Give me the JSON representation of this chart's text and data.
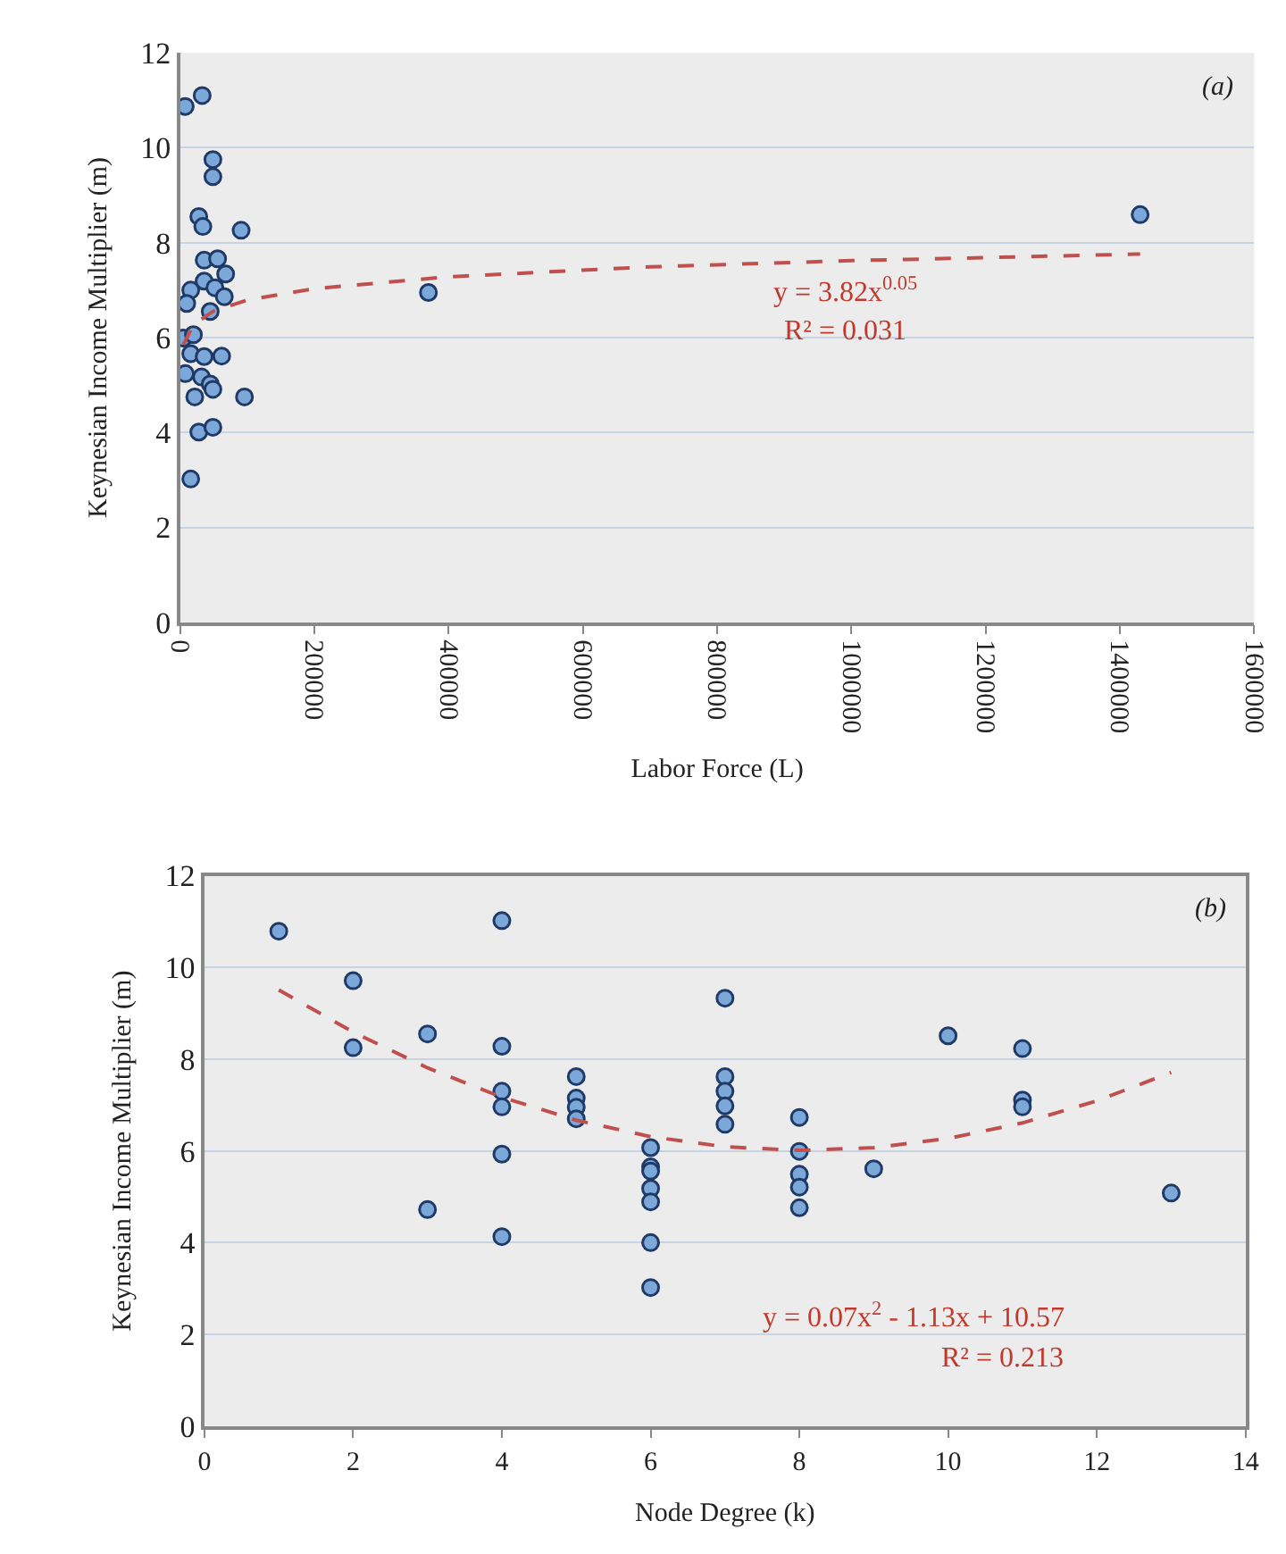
{
  "chart_data": [
    {
      "type": "scatter",
      "xlabel": "Labor Force (L)",
      "ylabel": "Keynesian Income Multiplier (m)",
      "xlim": [
        0,
        1600000
      ],
      "xticks": [
        0,
        200000,
        400000,
        600000,
        800000,
        1000000,
        1200000,
        1400000,
        1600000
      ],
      "ylim": [
        0,
        12
      ],
      "yticks": [
        0,
        2,
        4,
        6,
        8,
        10,
        12
      ],
      "grid": "y",
      "marker": "circle",
      "annotations": [
        "(a)",
        "y = 3.82x$^{0.05}$",
        "R² = 0.031"
      ],
      "series": [
        {
          "color": "#7ba7d9",
          "x": [
            7800,
            33000,
            49000,
            49000,
            28000,
            34000,
            91000,
            36000,
            56000,
            68000,
            36000,
            16000,
            52000,
            66000,
            10000,
            45000,
            5000,
            20000,
            16000,
            36000,
            62000,
            8000,
            32000,
            45000,
            49000,
            22000,
            96000,
            28000,
            49000,
            16000,
            370000,
            1430000
          ],
          "values": [
            10.87,
            11.1,
            9.75,
            9.39,
            8.55,
            8.34,
            8.26,
            7.63,
            7.66,
            7.34,
            7.19,
            7.0,
            7.05,
            6.86,
            6.72,
            6.55,
            5.99,
            6.06,
            5.66,
            5.6,
            5.61,
            5.24,
            5.17,
            5.02,
            4.91,
            4.75,
            4.75,
            4.01,
            4.11,
            3.02,
            6.95,
            8.59
          ]
        },
        {
          "type": "line",
          "color": "#c0504d",
          "line_style": "dashed",
          "marker": "none",
          "x": [
            5000,
            20000,
            50000,
            100000,
            200000,
            400000,
            700000,
            1000000,
            1430000
          ],
          "values": [
            5.85,
            6.27,
            6.56,
            6.79,
            7.03,
            7.28,
            7.49,
            7.62,
            7.76
          ]
        }
      ]
    },
    {
      "type": "scatter",
      "xlabel": "Node Degree (k)",
      "ylabel": "Keynesian Income Multiplier (m)",
      "xlim": [
        0,
        14
      ],
      "xticks": [
        0,
        2,
        4,
        6,
        8,
        10,
        12,
        14
      ],
      "ylim": [
        0,
        12
      ],
      "yticks": [
        0,
        2,
        4,
        6,
        8,
        10,
        12
      ],
      "grid": "y",
      "marker": "circle",
      "annotations": [
        "(b)",
        "y = 0.07x$^{2}$ - 1.13x + 10.57",
        "R² = 0.213"
      ],
      "series": [
        {
          "color": "#7ba7d9",
          "x": [
            1,
            2,
            2,
            3,
            3,
            4,
            4,
            4,
            4,
            4,
            4,
            5,
            5,
            5,
            5,
            6,
            6,
            6,
            6,
            6,
            6,
            6,
            7,
            7,
            7,
            7,
            7,
            8,
            8,
            8,
            8,
            8,
            9,
            10,
            11,
            11,
            11,
            13
          ],
          "values": [
            10.79,
            9.71,
            8.25,
            8.55,
            4.72,
            11.02,
            8.28,
            7.3,
            6.96,
            5.93,
            4.13,
            7.62,
            7.15,
            6.95,
            6.7,
            6.07,
            5.65,
            5.56,
            5.18,
            4.89,
            4.0,
            3.02,
            9.33,
            7.62,
            7.3,
            6.98,
            6.58,
            6.73,
            5.99,
            5.49,
            5.21,
            4.76,
            5.61,
            8.51,
            8.23,
            7.11,
            6.96,
            5.08
          ]
        },
        {
          "type": "line",
          "color": "#c0504d",
          "line_style": "dashed",
          "marker": "none",
          "x": [
            1,
            2,
            3,
            4,
            5,
            6,
            7,
            8,
            9,
            10,
            11,
            12,
            13
          ],
          "values": [
            9.51,
            8.59,
            7.81,
            7.17,
            6.67,
            6.31,
            6.09,
            6.01,
            6.07,
            6.27,
            6.61,
            7.09,
            7.71
          ]
        }
      ]
    }
  ]
}
